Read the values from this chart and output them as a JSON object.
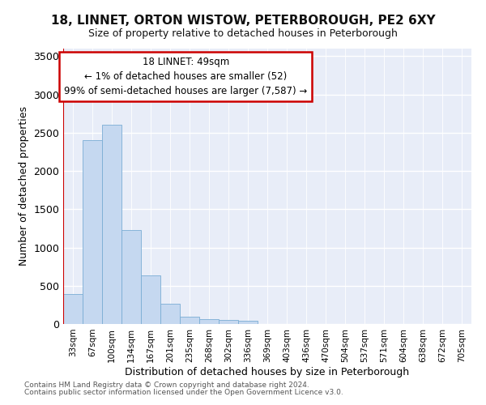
{
  "title": "18, LINNET, ORTON WISTOW, PETERBOROUGH, PE2 6XY",
  "subtitle": "Size of property relative to detached houses in Peterborough",
  "xlabel": "Distribution of detached houses by size in Peterborough",
  "ylabel": "Number of detached properties",
  "bar_color": "#c5d8f0",
  "bar_edge_color": "#7aadd4",
  "plot_bg_color": "#e8edf8",
  "grid_color": "#ffffff",
  "annotation_text": "18 LINNET: 49sqm\n← 1% of detached houses are smaller (52)\n99% of semi-detached houses are larger (7,587) →",
  "annotation_box_facecolor": "#ffffff",
  "annotation_border_color": "#cc0000",
  "marker_line_color": "#cc0000",
  "footer_line1": "Contains HM Land Registry data © Crown copyright and database right 2024.",
  "footer_line2": "Contains public sector information licensed under the Open Government Licence v3.0.",
  "categories": [
    "33sqm",
    "67sqm",
    "100sqm",
    "134sqm",
    "167sqm",
    "201sqm",
    "235sqm",
    "268sqm",
    "302sqm",
    "336sqm",
    "369sqm",
    "403sqm",
    "436sqm",
    "470sqm",
    "504sqm",
    "537sqm",
    "571sqm",
    "604sqm",
    "638sqm",
    "672sqm",
    "705sqm"
  ],
  "values": [
    390,
    2400,
    2600,
    1230,
    640,
    260,
    95,
    60,
    55,
    45,
    0,
    0,
    0,
    0,
    0,
    0,
    0,
    0,
    0,
    0,
    0
  ],
  "ylim": [
    0,
    3600
  ],
  "yticks": [
    0,
    500,
    1000,
    1500,
    2000,
    2500,
    3000,
    3500
  ]
}
